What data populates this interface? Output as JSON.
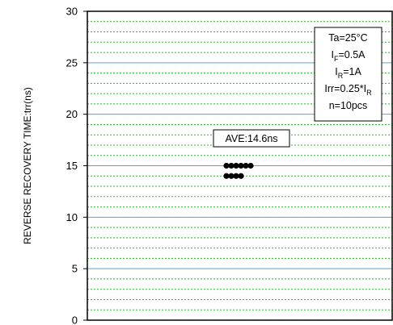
{
  "chart_data": {
    "type": "scatter",
    "ylabel": "REVERSE RECOVERY TIME:trr(ns)",
    "xlabel": "",
    "title": "",
    "ylim": [
      0,
      30
    ],
    "y_ticks": [
      0,
      5,
      10,
      15,
      20,
      25,
      30
    ],
    "y_tick_labels": [
      "0",
      "5",
      "10",
      "15",
      "20",
      "25",
      "30"
    ],
    "grid": {
      "major": true,
      "major_color": "#5aa0d8",
      "minor": true,
      "minor_step": 1,
      "minor_color": "#22bb22",
      "minor_style": "dashed"
    },
    "points": [
      {
        "y": 15.0
      },
      {
        "y": 15.0
      },
      {
        "y": 15.0
      },
      {
        "y": 15.0
      },
      {
        "y": 15.0
      },
      {
        "y": 15.0
      },
      {
        "y": 14.0
      },
      {
        "y": 14.0
      },
      {
        "y": 14.0
      },
      {
        "y": 14.0
      }
    ],
    "marker_color": "#000000",
    "annotations": {
      "average": "AVE:14.6ns",
      "conditions": [
        {
          "main": "Ta=25°C"
        },
        {
          "main": "I",
          "sub": "F",
          "rest": "=0.5A"
        },
        {
          "main": "I",
          "sub": "R",
          "rest": "=1A"
        },
        {
          "main": "Irr=0.25*I",
          "sub": "R",
          "rest": ""
        },
        {
          "main": "n=10pcs"
        }
      ]
    }
  }
}
